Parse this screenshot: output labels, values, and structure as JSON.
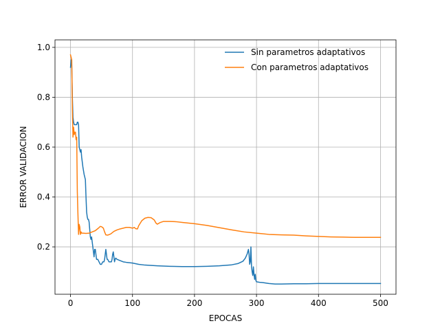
{
  "chart_data": {
    "type": "line",
    "title": "",
    "xlabel": "EPOCAS",
    "ylabel": "ERROR VALIDACION",
    "xlim": [
      -25,
      525
    ],
    "ylim": [
      0.01,
      1.03
    ],
    "xticks": [
      0,
      100,
      200,
      300,
      400,
      500
    ],
    "yticks": [
      0.2,
      0.4,
      0.6,
      0.8,
      1.0
    ],
    "xtick_labels": [
      "0",
      "100",
      "200",
      "300",
      "400",
      "500"
    ],
    "ytick_labels": [
      "0.2",
      "0.4",
      "0.6",
      "0.8",
      "1.0"
    ],
    "grid": true,
    "legend_position": "top-right",
    "series": [
      {
        "name": "Sin parametros adaptativos",
        "color": "#1f77b4",
        "points": [
          [
            0,
            0.92
          ],
          [
            1,
            0.95
          ],
          [
            2,
            0.93
          ],
          [
            3,
            0.8
          ],
          [
            4,
            0.72
          ],
          [
            5,
            0.7
          ],
          [
            6,
            0.69
          ],
          [
            7,
            0.69
          ],
          [
            8,
            0.69
          ],
          [
            9,
            0.69
          ],
          [
            10,
            0.69
          ],
          [
            11,
            0.7
          ],
          [
            12,
            0.7
          ],
          [
            13,
            0.69
          ],
          [
            14,
            0.6
          ],
          [
            15,
            0.59
          ],
          [
            16,
            0.58
          ],
          [
            17,
            0.59
          ],
          [
            18,
            0.56
          ],
          [
            20,
            0.52
          ],
          [
            22,
            0.49
          ],
          [
            24,
            0.47
          ],
          [
            25,
            0.4
          ],
          [
            26,
            0.34
          ],
          [
            27,
            0.32
          ],
          [
            28,
            0.31
          ],
          [
            29,
            0.31
          ],
          [
            30,
            0.3
          ],
          [
            31,
            0.27
          ],
          [
            32,
            0.24
          ],
          [
            33,
            0.23
          ],
          [
            34,
            0.24
          ],
          [
            35,
            0.22
          ],
          [
            36,
            0.2
          ],
          [
            37,
            0.18
          ],
          [
            38,
            0.16
          ],
          [
            39,
            0.19
          ],
          [
            40,
            0.19
          ],
          [
            41,
            0.17
          ],
          [
            42,
            0.15
          ],
          [
            44,
            0.15
          ],
          [
            46,
            0.14
          ],
          [
            48,
            0.13
          ],
          [
            50,
            0.13
          ],
          [
            52,
            0.14
          ],
          [
            54,
            0.14
          ],
          [
            55,
            0.15
          ],
          [
            56,
            0.17
          ],
          [
            57,
            0.19
          ],
          [
            58,
            0.17
          ],
          [
            59,
            0.15
          ],
          [
            60,
            0.15
          ],
          [
            62,
            0.14
          ],
          [
            64,
            0.14
          ],
          [
            66,
            0.14
          ],
          [
            67,
            0.15
          ],
          [
            68,
            0.17
          ],
          [
            69,
            0.18
          ],
          [
            70,
            0.16
          ],
          [
            71,
            0.14
          ],
          [
            72,
            0.15
          ],
          [
            73,
            0.155
          ],
          [
            75,
            0.15
          ],
          [
            80,
            0.145
          ],
          [
            85,
            0.14
          ],
          [
            90,
            0.138
          ],
          [
            100,
            0.135
          ],
          [
            110,
            0.13
          ],
          [
            120,
            0.127
          ],
          [
            140,
            0.124
          ],
          [
            160,
            0.122
          ],
          [
            180,
            0.121
          ],
          [
            200,
            0.121
          ],
          [
            220,
            0.122
          ],
          [
            240,
            0.124
          ],
          [
            260,
            0.128
          ],
          [
            270,
            0.133
          ],
          [
            278,
            0.142
          ],
          [
            282,
            0.155
          ],
          [
            285,
            0.172
          ],
          [
            287,
            0.19
          ],
          [
            288,
            0.17
          ],
          [
            289,
            0.13
          ],
          [
            290,
            0.14
          ],
          [
            291,
            0.2
          ],
          [
            292,
            0.12
          ],
          [
            293,
            0.1
          ],
          [
            294,
            0.085
          ],
          [
            295,
            0.12
          ],
          [
            296,
            0.09
          ],
          [
            297,
            0.07
          ],
          [
            298,
            0.09
          ],
          [
            299,
            0.065
          ],
          [
            300,
            0.06
          ],
          [
            305,
            0.058
          ],
          [
            310,
            0.057
          ],
          [
            320,
            0.053
          ],
          [
            330,
            0.051
          ],
          [
            340,
            0.051
          ],
          [
            360,
            0.052
          ],
          [
            380,
            0.052
          ],
          [
            400,
            0.053
          ],
          [
            420,
            0.053
          ],
          [
            440,
            0.053
          ],
          [
            460,
            0.053
          ],
          [
            480,
            0.053
          ],
          [
            500,
            0.053
          ]
        ]
      },
      {
        "name": "Con parametros adaptativos",
        "color": "#ff7f0e",
        "points": [
          [
            0,
            0.97
          ],
          [
            1,
            0.96
          ],
          [
            2,
            0.95
          ],
          [
            3,
            0.75
          ],
          [
            4,
            0.64
          ],
          [
            5,
            0.68
          ],
          [
            6,
            0.65
          ],
          [
            7,
            0.66
          ],
          [
            8,
            0.66
          ],
          [
            9,
            0.63
          ],
          [
            10,
            0.64
          ],
          [
            11,
            0.42
          ],
          [
            12,
            0.33
          ],
          [
            13,
            0.25
          ],
          [
            14,
            0.29
          ],
          [
            15,
            0.28
          ],
          [
            16,
            0.25
          ],
          [
            17,
            0.26
          ],
          [
            18,
            0.255
          ],
          [
            20,
            0.255
          ],
          [
            25,
            0.254
          ],
          [
            30,
            0.255
          ],
          [
            35,
            0.26
          ],
          [
            40,
            0.265
          ],
          [
            45,
            0.275
          ],
          [
            48,
            0.282
          ],
          [
            50,
            0.281
          ],
          [
            53,
            0.275
          ],
          [
            55,
            0.26
          ],
          [
            57,
            0.248
          ],
          [
            60,
            0.247
          ],
          [
            65,
            0.252
          ],
          [
            70,
            0.262
          ],
          [
            75,
            0.268
          ],
          [
            80,
            0.272
          ],
          [
            85,
            0.275
          ],
          [
            90,
            0.278
          ],
          [
            95,
            0.278
          ],
          [
            100,
            0.275
          ],
          [
            103,
            0.278
          ],
          [
            105,
            0.273
          ],
          [
            108,
            0.272
          ],
          [
            110,
            0.285
          ],
          [
            115,
            0.305
          ],
          [
            120,
            0.315
          ],
          [
            125,
            0.318
          ],
          [
            130,
            0.317
          ],
          [
            135,
            0.308
          ],
          [
            138,
            0.295
          ],
          [
            140,
            0.291
          ],
          [
            145,
            0.298
          ],
          [
            150,
            0.302
          ],
          [
            160,
            0.302
          ],
          [
            170,
            0.301
          ],
          [
            180,
            0.298
          ],
          [
            200,
            0.293
          ],
          [
            220,
            0.286
          ],
          [
            240,
            0.277
          ],
          [
            260,
            0.268
          ],
          [
            280,
            0.26
          ],
          [
            300,
            0.255
          ],
          [
            320,
            0.25
          ],
          [
            340,
            0.248
          ],
          [
            360,
            0.247
          ],
          [
            380,
            0.244
          ],
          [
            400,
            0.242
          ],
          [
            420,
            0.24
          ],
          [
            440,
            0.239
          ],
          [
            460,
            0.238
          ],
          [
            480,
            0.238
          ],
          [
            500,
            0.238
          ]
        ]
      }
    ]
  }
}
